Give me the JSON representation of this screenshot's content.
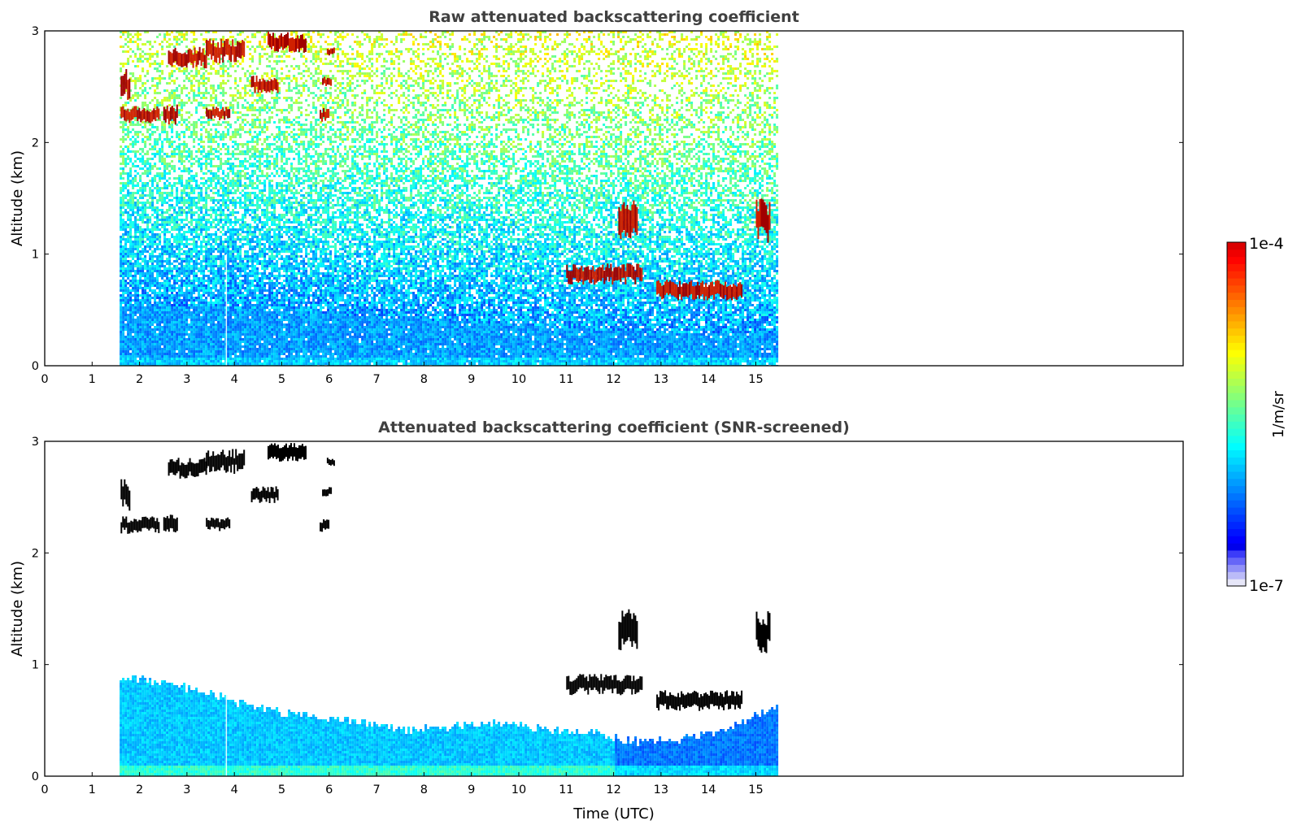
{
  "chart_data": [
    {
      "type": "heatmap",
      "title": "Raw attenuated backscattering coefficient",
      "xlabel": "",
      "ylabel": "Altitude (km)",
      "xlim": [
        0,
        24
      ],
      "ylim": [
        0,
        3
      ],
      "xticks": [
        "0",
        "1",
        "2",
        "3",
        "4",
        "5",
        "6",
        "7",
        "8",
        "9",
        "10",
        "11",
        "12",
        "13",
        "14",
        "15"
      ],
      "yticks": [
        "0",
        "1",
        "2",
        "3"
      ],
      "data_time_range": [
        1.58,
        15.45
      ],
      "colormap": "jet",
      "color_scale": "log",
      "color_range": [
        1e-07,
        0.0001
      ],
      "features": {
        "boundary_layer_top_km": [
          [
            1.6,
            0.55
          ],
          [
            3,
            0.55
          ],
          [
            5,
            0.5
          ],
          [
            7,
            0.45
          ],
          [
            9,
            0.4
          ],
          [
            11,
            0.35
          ],
          [
            13,
            0.3
          ],
          [
            15.4,
            0.3
          ]
        ],
        "cloud_segments": [
          {
            "t0": 1.6,
            "t1": 1.8,
            "alt": 2.52,
            "thick": 0.18
          },
          {
            "t0": 2.6,
            "t1": 3.4,
            "alt": 2.76,
            "thick": 0.12
          },
          {
            "t0": 3.4,
            "t1": 4.2,
            "alt": 2.82,
            "thick": 0.14
          },
          {
            "t0": 4.35,
            "t1": 4.9,
            "alt": 2.52,
            "thick": 0.1
          },
          {
            "t0": 4.7,
            "t1": 5.5,
            "alt": 2.9,
            "thick": 0.12
          },
          {
            "t0": 1.6,
            "t1": 2.4,
            "alt": 2.25,
            "thick": 0.1
          },
          {
            "t0": 2.5,
            "t1": 2.8,
            "alt": 2.25,
            "thick": 0.12
          },
          {
            "t0": 3.4,
            "t1": 3.9,
            "alt": 2.26,
            "thick": 0.08
          },
          {
            "t0": 5.8,
            "t1": 6.0,
            "alt": 2.25,
            "thick": 0.08
          },
          {
            "t0": 5.85,
            "t1": 6.05,
            "alt": 2.55,
            "thick": 0.06
          },
          {
            "t0": 5.95,
            "t1": 6.1,
            "alt": 2.82,
            "thick": 0.05
          },
          {
            "t0": 11.0,
            "t1": 12.6,
            "alt": 0.82,
            "thick": 0.12
          },
          {
            "t0": 12.1,
            "t1": 12.5,
            "alt": 1.3,
            "thick": 0.25
          },
          {
            "t0": 12.9,
            "t1": 14.7,
            "alt": 0.68,
            "thick": 0.12
          },
          {
            "t0": 15.0,
            "t1": 15.3,
            "alt": 1.3,
            "thick": 0.25
          }
        ]
      }
    },
    {
      "type": "heatmap",
      "title": "Attenuated backscattering coefficient (SNR-screened)",
      "xlabel": "Time (UTC)",
      "ylabel": "Altitude (km)",
      "xlim": [
        0,
        24
      ],
      "ylim": [
        0,
        3
      ],
      "xticks": [
        "0",
        "1",
        "2",
        "3",
        "4",
        "5",
        "6",
        "7",
        "8",
        "9",
        "10",
        "11",
        "12",
        "13",
        "14",
        "15"
      ],
      "yticks": [
        "0",
        "1",
        "2",
        "3"
      ],
      "data_time_range": [
        1.58,
        15.45
      ],
      "colormap": "jet",
      "color_scale": "log",
      "color_range": [
        1e-07,
        0.0001
      ],
      "features": {
        "screened_layer_top_km": [
          [
            1.6,
            0.9
          ],
          [
            2.5,
            0.85
          ],
          [
            3.5,
            0.75
          ],
          [
            4.5,
            0.62
          ],
          [
            5.5,
            0.55
          ],
          [
            6.5,
            0.5
          ],
          [
            7.5,
            0.42
          ],
          [
            8.5,
            0.45
          ],
          [
            9.5,
            0.5
          ],
          [
            10.5,
            0.42
          ],
          [
            11.5,
            0.4
          ],
          [
            12.5,
            0.32
          ],
          [
            13.5,
            0.35
          ],
          [
            14.5,
            0.45
          ],
          [
            15.4,
            0.65
          ]
        ]
      }
    }
  ],
  "colorbar": {
    "label": "1/m/sr",
    "min_label": "1e-7",
    "max_label": "1e-4",
    "colormap": "jet",
    "scale": "log"
  }
}
